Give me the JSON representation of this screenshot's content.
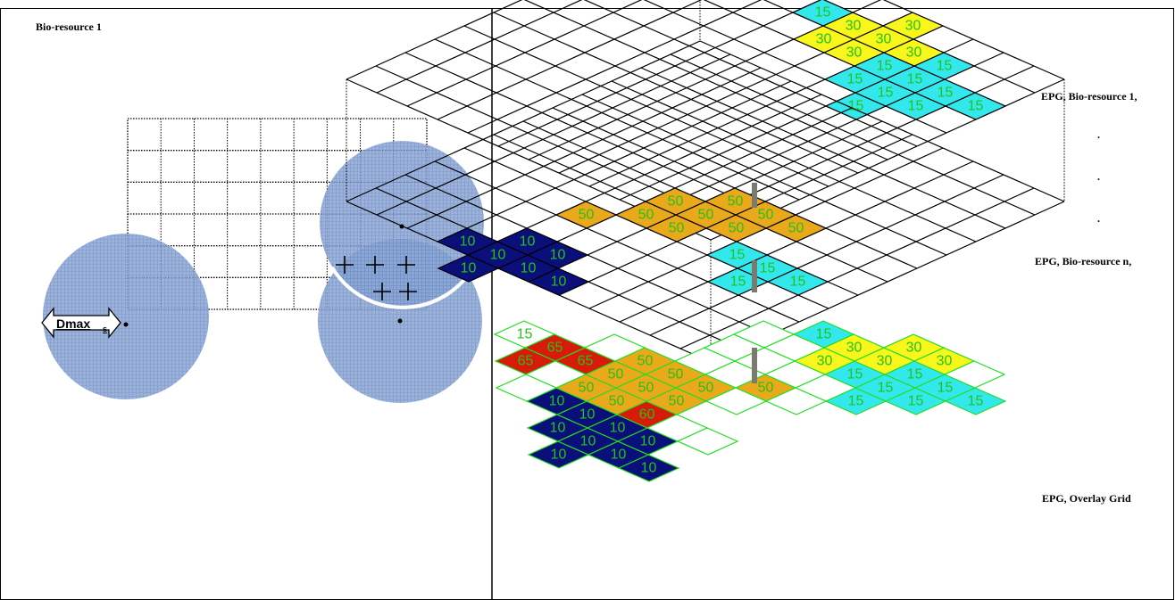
{
  "left_panel": {
    "title": "Bio-resource 1",
    "arrow_label": "Dmax",
    "arrow_subscript": "s"
  },
  "right_panel": {
    "labels": {
      "top": "EPG, Bio-resource 1,",
      "dot1": ".",
      "dot2": ".",
      "dot3": ".",
      "middle": "EPG, Bio-resource n,",
      "bottom": "EPG, Overlay Grid"
    }
  },
  "colors": {
    "cyan": "#33e8ec",
    "yellow": "#f8f61a",
    "orange": "#eaa91a",
    "navy": "#0a0f7a",
    "red": "#d81a0a",
    "text_green": "#22c318",
    "circle_fill": "#7f9dcf",
    "overlay_grid": "#22dd22"
  },
  "layers": [
    {
      "name": "EPG, Bio-resource 1",
      "cells": [
        {
          "i": 9,
          "j": 0,
          "c": "cyan",
          "v": "15"
        },
        {
          "i": 8,
          "j": 1,
          "c": "cyan",
          "v": "15"
        },
        {
          "i": 9,
          "j": 1,
          "c": "cyan",
          "v": "15"
        },
        {
          "i": 7,
          "j": 2,
          "c": "cyan",
          "v": "15"
        },
        {
          "i": 8,
          "j": 2,
          "c": "cyan",
          "v": "15"
        },
        {
          "i": 9,
          "j": 2,
          "c": "cyan",
          "v": "15"
        },
        {
          "i": 10,
          "j": 2,
          "c": "cyan",
          "v": "15"
        },
        {
          "i": 8,
          "j": 3,
          "c": "cyan",
          "v": "15"
        },
        {
          "i": 9,
          "j": 3,
          "c": "cyan",
          "v": "15"
        },
        {
          "i": 10,
          "j": 3,
          "c": "yellow",
          "v": "30"
        },
        {
          "i": 9,
          "j": 4,
          "c": "yellow",
          "v": "30"
        },
        {
          "i": 10,
          "j": 4,
          "c": "yellow",
          "v": "30"
        },
        {
          "i": 11,
          "j": 4,
          "c": "yellow",
          "v": "30"
        },
        {
          "i": 9,
          "j": 5,
          "c": "yellow",
          "v": "30"
        },
        {
          "i": 10,
          "j": 5,
          "c": "yellow",
          "v": "30"
        },
        {
          "i": 10,
          "j": 6,
          "c": "cyan",
          "v": "15"
        }
      ]
    },
    {
      "name": "EPG, Bio-resource n",
      "cells": [
        {
          "i": 4,
          "j": 1,
          "c": "cyan",
          "v": "15"
        },
        {
          "i": 3,
          "j": 2,
          "c": "cyan",
          "v": "15"
        },
        {
          "i": 4,
          "j": 2,
          "c": "cyan",
          "v": "15"
        },
        {
          "i": 4,
          "j": 3,
          "c": "cyan",
          "v": "15"
        },
        {
          "i": 5,
          "j": 4,
          "c": "orange",
          "v": "50"
        },
        {
          "i": 6,
          "j": 3,
          "c": "orange",
          "v": "50"
        },
        {
          "i": 6,
          "j": 4,
          "c": "orange",
          "v": "50"
        },
        {
          "i": 4,
          "j": 5,
          "c": "orange",
          "v": "50"
        },
        {
          "i": 5,
          "j": 5,
          "c": "orange",
          "v": "50"
        },
        {
          "i": 6,
          "j": 5,
          "c": "orange",
          "v": "50"
        },
        {
          "i": 4,
          "j": 6,
          "c": "orange",
          "v": "50"
        },
        {
          "i": 5,
          "j": 6,
          "c": "orange",
          "v": "50"
        },
        {
          "i": 3,
          "j": 7,
          "c": "orange",
          "v": "50"
        },
        {
          "i": 0,
          "j": 5,
          "c": "navy",
          "v": "10"
        },
        {
          "i": 0,
          "j": 6,
          "c": "navy",
          "v": "10"
        },
        {
          "i": 1,
          "j": 6,
          "c": "navy",
          "v": "10"
        },
        {
          "i": -1,
          "j": 7,
          "c": "navy",
          "v": "10"
        },
        {
          "i": 0,
          "j": 7,
          "c": "navy",
          "v": "10"
        },
        {
          "i": 1,
          "j": 7,
          "c": "navy",
          "v": "10"
        },
        {
          "i": 0,
          "j": 8,
          "c": "navy",
          "v": "10"
        }
      ]
    },
    {
      "name": "EPG, Overlay Grid",
      "cells": [
        {
          "i": 9,
          "j": 0,
          "c": "cyan",
          "v": "15"
        },
        {
          "i": 8,
          "j": 1,
          "c": "cyan",
          "v": "15"
        },
        {
          "i": 9,
          "j": 1,
          "c": "cyan",
          "v": "15"
        },
        {
          "i": 7,
          "j": 2,
          "c": "cyan",
          "v": "15"
        },
        {
          "i": 8,
          "j": 2,
          "c": "cyan",
          "v": "15"
        },
        {
          "i": 9,
          "j": 2,
          "c": "cyan",
          "v": "15"
        },
        {
          "i": 8,
          "j": 3,
          "c": "cyan",
          "v": "15"
        },
        {
          "i": 10,
          "j": 2,
          "c": "yellow",
          "v": "30"
        },
        {
          "i": 9,
          "j": 3,
          "c": "yellow",
          "v": "30"
        },
        {
          "i": 10,
          "j": 3,
          "c": "yellow",
          "v": "30"
        },
        {
          "i": 8,
          "j": 4,
          "c": "yellow",
          "v": "30"
        },
        {
          "i": 9,
          "j": 4,
          "c": "yellow",
          "v": "30"
        },
        {
          "i": 9,
          "j": 5,
          "c": "cyan",
          "v": "15"
        },
        {
          "i": 1,
          "j": 3,
          "c": "navy",
          "v": "10"
        },
        {
          "i": 1,
          "j": 4,
          "c": "navy",
          "v": "10"
        },
        {
          "i": 2,
          "j": 4,
          "c": "navy",
          "v": "10"
        },
        {
          "i": 0,
          "j": 5,
          "c": "navy",
          "v": "10"
        },
        {
          "i": 1,
          "j": 5,
          "c": "navy",
          "v": "10"
        },
        {
          "i": 2,
          "j": 5,
          "c": "navy",
          "v": "10"
        },
        {
          "i": 1,
          "j": 6,
          "c": "navy",
          "v": "10"
        },
        {
          "i": 2,
          "j": 6,
          "c": "navy",
          "v": "10"
        },
        {
          "i": 2,
          "j": 7,
          "c": "navy",
          "v": "10"
        },
        {
          "i": 3,
          "j": 5,
          "c": "red",
          "v": "60"
        },
        {
          "i": 4,
          "j": 5,
          "c": "orange",
          "v": "50"
        },
        {
          "i": 5,
          "j": 5,
          "c": "orange",
          "v": "50"
        },
        {
          "i": 6,
          "j": 4,
          "c": "orange",
          "v": "50"
        },
        {
          "i": 3,
          "j": 6,
          "c": "orange",
          "v": "50"
        },
        {
          "i": 4,
          "j": 6,
          "c": "orange",
          "v": "50"
        },
        {
          "i": 5,
          "j": 6,
          "c": "orange",
          "v": "50"
        },
        {
          "i": 3,
          "j": 7,
          "c": "orange",
          "v": "50"
        },
        {
          "i": 4,
          "j": 7,
          "c": "orange",
          "v": "50"
        },
        {
          "i": 5,
          "j": 7,
          "c": "orange",
          "v": "50"
        },
        {
          "i": 4,
          "j": 8,
          "c": "red",
          "v": "65"
        },
        {
          "i": 3,
          "j": 9,
          "c": "red",
          "v": "65"
        },
        {
          "i": 4,
          "j": 9,
          "c": "red",
          "v": "65"
        },
        {
          "i": 4,
          "j": 10,
          "c": "white",
          "v": "15"
        }
      ]
    }
  ]
}
